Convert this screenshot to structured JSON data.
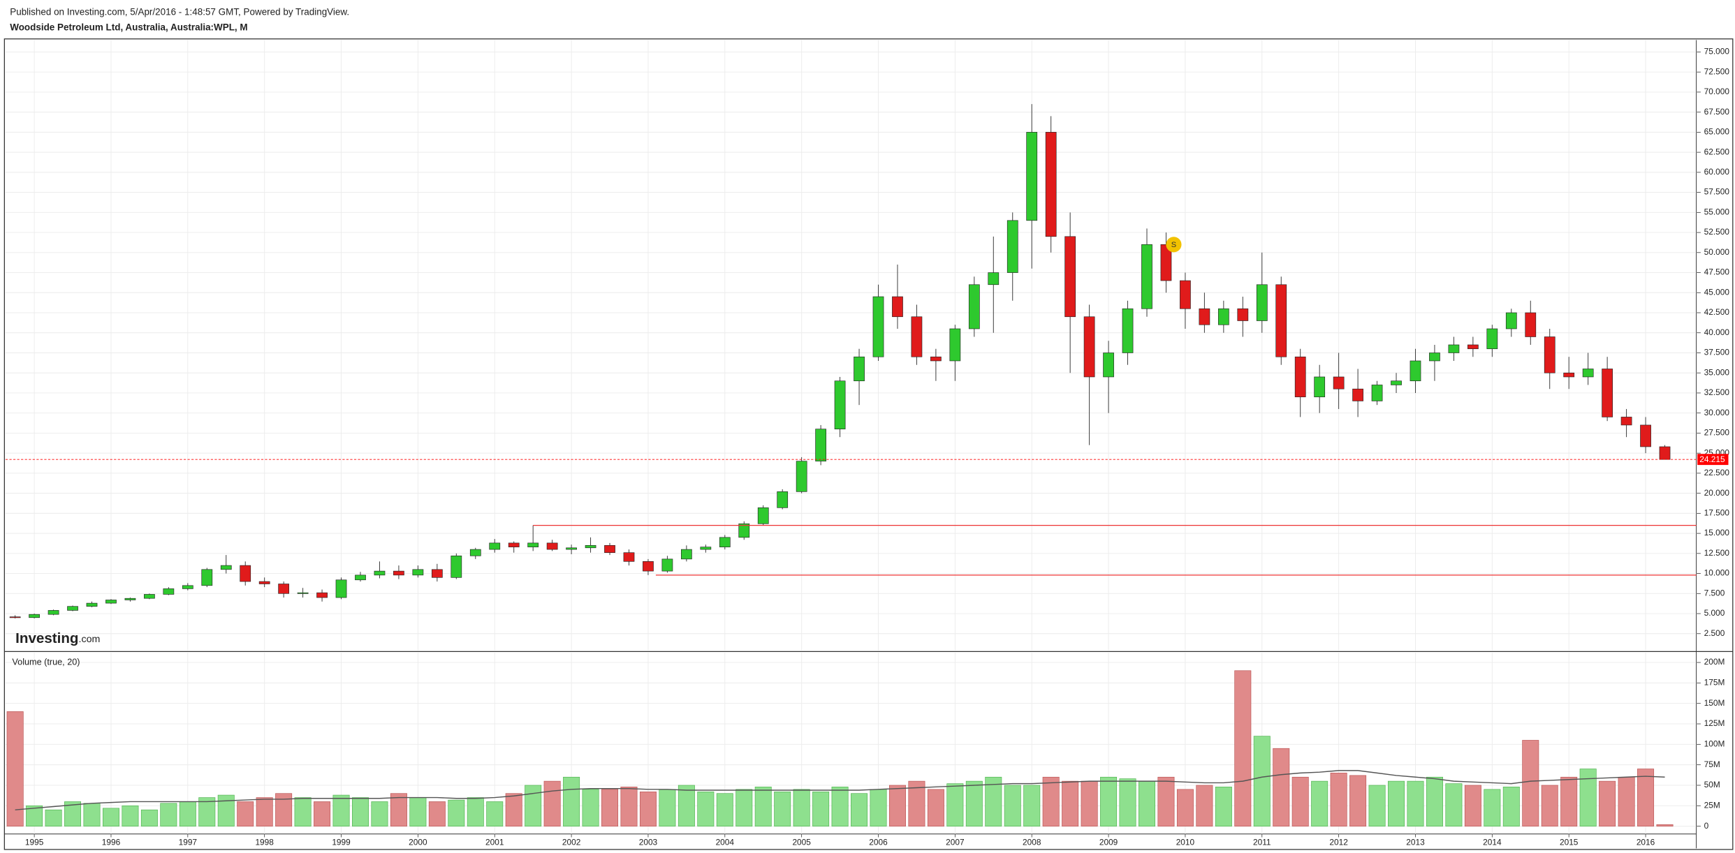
{
  "header": {
    "published": "Published on Investing.com, 5/Apr/2016 - 1:48:57 GMT, Powered by TradingView.",
    "symbol": "Woodside Petroleum Ltd, Australia, Australia:WPL, M"
  },
  "chart_data": [
    {
      "type": "candlestick",
      "x": [
        1994.75,
        1995,
        1995.25,
        1995.5,
        1995.75,
        1996,
        1996.25,
        1996.5,
        1996.75,
        1997,
        1997.25,
        1997.5,
        1997.75,
        1998,
        1998.25,
        1998.5,
        1998.75,
        1999,
        1999.25,
        1999.5,
        1999.75,
        2000,
        2000.25,
        2000.5,
        2000.75,
        2001,
        2001.25,
        2001.5,
        2001.75,
        2002,
        2002.25,
        2002.5,
        2002.75,
        2003,
        2003.25,
        2003.5,
        2003.75,
        2004,
        2004.25,
        2004.5,
        2004.75,
        2005,
        2005.25,
        2005.5,
        2005.75,
        2006,
        2006.25,
        2006.5,
        2006.75,
        2007,
        2007.25,
        2007.5,
        2007.75,
        2008,
        2008.25,
        2008.5,
        2008.75,
        2009,
        2009.25,
        2009.5,
        2009.75,
        2010,
        2010.25,
        2010.5,
        2010.75,
        2011,
        2011.25,
        2011.5,
        2011.75,
        2012,
        2012.25,
        2012.5,
        2012.75,
        2013,
        2013.25,
        2013.5,
        2013.75,
        2014,
        2014.25,
        2014.5,
        2014.75,
        2015,
        2015.25,
        2015.5,
        2015.75,
        2016,
        2016.25
      ],
      "open": [
        4.6,
        4.5,
        4.9,
        5.4,
        5.9,
        6.3,
        6.7,
        6.9,
        7.4,
        8.1,
        8.5,
        10.5,
        11,
        9,
        8.7,
        7.5,
        7.6,
        7,
        9.2,
        9.8,
        10.3,
        9.8,
        10.5,
        9.5,
        12.2,
        13,
        13.8,
        13.3,
        13.8,
        13,
        13.2,
        13.5,
        12.6,
        11.5,
        10.3,
        11.8,
        13,
        13.3,
        14.5,
        16.2,
        18.2,
        20.2,
        24,
        28,
        34,
        37,
        44.5,
        42,
        37,
        36.5,
        40.5,
        46,
        47.5,
        54,
        65,
        52,
        42,
        34.5,
        37.5,
        43,
        51,
        46.5,
        43,
        41,
        43,
        41.5,
        46,
        37,
        32,
        34.5,
        33,
        31.5,
        33.5,
        34,
        36.5,
        37.5,
        38.5,
        38,
        40.5,
        42.5,
        39.5,
        35,
        34.5,
        35.5,
        29.5,
        28.5,
        25.8
      ],
      "high": [
        4.8,
        5,
        5.5,
        6,
        6.5,
        6.8,
        7,
        7.5,
        8.3,
        8.8,
        10.7,
        12.3,
        11.5,
        9.5,
        9,
        8.2,
        8,
        9.5,
        10.2,
        11.5,
        11,
        11,
        11.2,
        12.5,
        13.2,
        14.3,
        14,
        16,
        14.2,
        13.6,
        14.5,
        13.8,
        13,
        11.8,
        12.2,
        13.5,
        13.6,
        14.8,
        16.5,
        18.5,
        20.5,
        24.5,
        28.5,
        34.5,
        38,
        46,
        48.5,
        43.5,
        38,
        41,
        47,
        52,
        55,
        68.5,
        67,
        55,
        43.5,
        39,
        44,
        53,
        52.5,
        47.5,
        45,
        44,
        44.5,
        50,
        47,
        38,
        36,
        37.5,
        35.5,
        34,
        35,
        38,
        38.5,
        39.5,
        39.5,
        41,
        43,
        44,
        40.5,
        37,
        37.5,
        37,
        30.5,
        29.5,
        26
      ],
      "low": [
        4.4,
        4.4,
        4.8,
        5.3,
        5.8,
        6.2,
        6.5,
        6.8,
        7.3,
        7.9,
        8.3,
        10,
        8.5,
        8.3,
        7,
        7,
        6.5,
        6.8,
        9,
        9.4,
        9.3,
        9.5,
        9,
        9.3,
        11.8,
        12.6,
        12.6,
        12.8,
        12.8,
        12.4,
        12.6,
        12.3,
        11,
        9.8,
        10.1,
        11.5,
        12.6,
        13,
        14.2,
        16,
        18,
        20,
        23.5,
        27,
        31,
        36.5,
        40.5,
        36,
        34,
        34,
        39.5,
        40,
        44,
        48,
        50,
        35,
        26,
        30,
        36,
        42,
        45,
        40.5,
        40,
        40,
        39.5,
        40,
        36,
        29.5,
        30,
        30.5,
        29.5,
        31,
        32.5,
        32.5,
        34,
        36.5,
        37,
        37,
        39.5,
        38.5,
        33,
        33,
        33.5,
        29,
        27,
        25,
        24.2
      ],
      "close": [
        4.5,
        4.9,
        5.4,
        5.9,
        6.3,
        6.7,
        6.9,
        7.4,
        8.1,
        8.5,
        10.5,
        11,
        9,
        8.7,
        7.5,
        7.6,
        7,
        9.2,
        9.8,
        10.3,
        9.8,
        10.5,
        9.5,
        12.2,
        13,
        13.8,
        13.3,
        13.8,
        13,
        13.2,
        13.5,
        12.6,
        11.5,
        10.3,
        11.8,
        13,
        13.3,
        14.5,
        16.2,
        18.2,
        20.2,
        24,
        28,
        34,
        37,
        44.5,
        42,
        37,
        36.5,
        40.5,
        46,
        47.5,
        54,
        65,
        52,
        42,
        34.5,
        37.5,
        43,
        51,
        46.5,
        43,
        41,
        43,
        41.5,
        46,
        37,
        32,
        34.5,
        33,
        31.5,
        33.5,
        34,
        36.5,
        37.5,
        38.5,
        38,
        40.5,
        42.5,
        39.5,
        35,
        34.5,
        35.5,
        29.5,
        28.5,
        25.8,
        24.215
      ],
      "up_color": "#2ec92e",
      "down_color": "#e01b1b",
      "xlim": [
        1994.625,
        2016.66
      ],
      "ylim": [
        0.41,
        76.49
      ],
      "yticks": [
        {
          "value": 2.5,
          "label": "2.500"
        },
        {
          "value": 5,
          "label": "5.000"
        },
        {
          "value": 7.5,
          "label": "7.500"
        },
        {
          "value": 10,
          "label": "10.000"
        },
        {
          "value": 12.5,
          "label": "12.500"
        },
        {
          "value": 15,
          "label": "15.000"
        },
        {
          "value": 17.5,
          "label": "17.500"
        },
        {
          "value": 20,
          "label": "20.000"
        },
        {
          "value": 22.5,
          "label": "22.500"
        },
        {
          "value": 25,
          "label": "25.000"
        },
        {
          "value": 27.5,
          "label": "27.500"
        },
        {
          "value": 30,
          "label": "30.000"
        },
        {
          "value": 32.5,
          "label": "32.500"
        },
        {
          "value": 35,
          "label": "35.000"
        },
        {
          "value": 37.5,
          "label": "37.500"
        },
        {
          "value": 40,
          "label": "40.000"
        },
        {
          "value": 42.5,
          "label": "42.500"
        },
        {
          "value": 45,
          "label": "45.000"
        },
        {
          "value": 47.5,
          "label": "47.500"
        },
        {
          "value": 50,
          "label": "50.000"
        },
        {
          "value": 52.5,
          "label": "52.500"
        },
        {
          "value": 55,
          "label": "55.000"
        },
        {
          "value": 57.5,
          "label": "57.500"
        },
        {
          "value": 60,
          "label": "60.000"
        },
        {
          "value": 62.5,
          "label": "62.500"
        },
        {
          "value": 65,
          "label": "65.000"
        },
        {
          "value": 67.5,
          "label": "67.500"
        },
        {
          "value": 70,
          "label": "70.000"
        },
        {
          "value": 72.5,
          "label": "72.500"
        },
        {
          "value": 75,
          "label": "75.000"
        }
      ],
      "grid": true,
      "price_line": {
        "value": 24.215,
        "color": "#ff0000"
      },
      "levels": [
        {
          "value": 16,
          "start": 2001.5
        },
        {
          "value": 9.8,
          "start": 2003.1
        }
      ],
      "annotation": {
        "text": "S",
        "x": 2009.85,
        "y": 51
      },
      "logo": [
        "Investing",
        ".com"
      ]
    },
    {
      "type": "bar",
      "title": "Volume (true, 20)",
      "x": [
        1994.75,
        1995,
        1995.25,
        1995.5,
        1995.75,
        1996,
        1996.25,
        1996.5,
        1996.75,
        1997,
        1997.25,
        1997.5,
        1997.75,
        1998,
        1998.25,
        1998.5,
        1998.75,
        1999,
        1999.25,
        1999.5,
        1999.75,
        2000,
        2000.25,
        2000.5,
        2000.75,
        2001,
        2001.25,
        2001.5,
        2001.75,
        2002,
        2002.25,
        2002.5,
        2002.75,
        2003,
        2003.25,
        2003.5,
        2003.75,
        2004,
        2004.25,
        2004.5,
        2004.75,
        2005,
        2005.25,
        2005.5,
        2005.75,
        2006,
        2006.25,
        2006.5,
        2006.75,
        2007,
        2007.25,
        2007.5,
        2007.75,
        2008,
        2008.25,
        2008.5,
        2008.75,
        2009,
        2009.25,
        2009.5,
        2009.75,
        2010,
        2010.25,
        2010.5,
        2010.75,
        2011,
        2011.25,
        2011.5,
        2011.75,
        2012,
        2012.25,
        2012.5,
        2012.75,
        2013,
        2013.25,
        2013.5,
        2013.75,
        2014,
        2014.25,
        2014.5,
        2014.75,
        2015,
        2015.25,
        2015.5,
        2015.75,
        2016,
        2016.25
      ],
      "values": [
        140,
        25,
        20,
        30,
        28,
        22,
        25,
        20,
        28,
        30,
        35,
        38,
        30,
        35,
        40,
        35,
        30,
        38,
        35,
        30,
        40,
        35,
        30,
        32,
        35,
        30,
        40,
        50,
        55,
        60,
        45,
        45,
        48,
        42,
        45,
        50,
        42,
        40,
        45,
        48,
        42,
        45,
        42,
        48,
        40,
        45,
        50,
        55,
        45,
        52,
        55,
        60,
        50,
        50,
        60,
        55,
        55,
        60,
        58,
        55,
        60,
        45,
        50,
        48,
        190,
        110,
        95,
        60,
        55,
        65,
        62,
        50,
        55,
        55,
        60,
        52,
        50,
        45,
        48,
        105,
        50,
        60,
        70,
        55,
        60,
        70,
        2
      ],
      "ma": [
        20,
        22,
        24,
        26,
        28,
        29,
        30,
        30,
        30,
        30,
        30,
        31,
        32,
        33,
        33,
        34,
        34,
        34,
        34,
        34,
        35,
        35,
        35,
        34,
        34,
        35,
        37,
        40,
        43,
        45,
        46,
        46,
        46,
        45,
        45,
        44,
        44,
        44,
        44,
        44,
        44,
        44,
        44,
        44,
        44,
        45,
        46,
        47,
        48,
        49,
        50,
        51,
        52,
        52,
        53,
        54,
        55,
        55,
        55,
        55,
        55,
        54,
        53,
        53,
        55,
        60,
        63,
        65,
        66,
        68,
        68,
        65,
        62,
        60,
        58,
        55,
        54,
        53,
        52,
        55,
        56,
        57,
        58,
        59,
        60,
        61,
        60
      ],
      "up_color": "#8ee08e",
      "down_color": "#e08a8a",
      "ma_color": "#555555",
      "xlim": [
        1994.625,
        2016.66
      ],
      "ylim": [
        -9.5,
        212
      ],
      "yticks": [
        0,
        {
          "value": 25,
          "label": "25M"
        },
        {
          "value": 50,
          "label": "50M"
        },
        {
          "value": 75,
          "label": "75M"
        },
        {
          "value": 100,
          "label": "100M"
        },
        {
          "value": 125,
          "label": "125M"
        },
        {
          "value": 150,
          "label": "150M"
        },
        {
          "value": 175,
          "label": "175M"
        },
        {
          "value": 200,
          "label": "200M"
        }
      ],
      "xticks": [
        1995,
        1996,
        1997,
        1998,
        1999,
        2000,
        2001,
        2002,
        2003,
        2004,
        2005,
        2006,
        2007,
        2008,
        2009,
        2010,
        2011,
        2012,
        2013,
        2014,
        2015,
        2016
      ],
      "grid": true
    }
  ]
}
